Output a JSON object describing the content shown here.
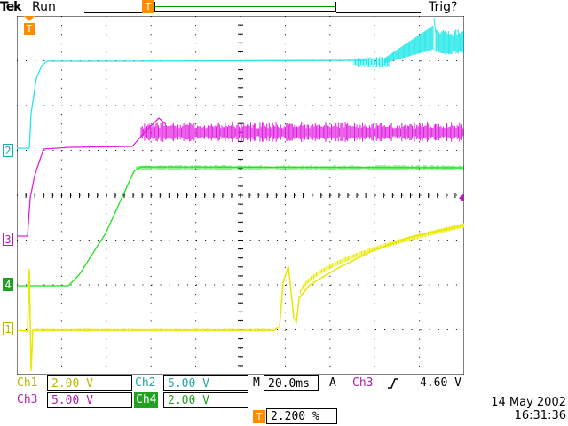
{
  "header": {
    "brand": "Tek",
    "status": "Run",
    "trigger_status": "Trig?"
  },
  "markers": {
    "trigger_pos": "T",
    "ch2": "2",
    "ch3": "3",
    "ch4": "4",
    "ch1": "1"
  },
  "colors": {
    "ch1": "#e8e800",
    "ch2": "#22e8e8",
    "ch3": "#e020e0",
    "ch4": "#22e022",
    "trigger": "#ff8c00",
    "grid": "#000000"
  },
  "channels": {
    "ch1": {
      "label": "Ch1",
      "scale": "2.00 V"
    },
    "ch2": {
      "label": "Ch2",
      "scale": "5.00 V"
    },
    "ch3": {
      "label": "Ch3",
      "scale": "5.00 V"
    },
    "ch4": {
      "label": "Ch4",
      "scale": "2.00 V"
    }
  },
  "timebase": {
    "prefix": "M",
    "value": "20.0ms"
  },
  "trigger": {
    "mode": "A",
    "source": "Ch3",
    "slope_icon": "rising-edge-icon",
    "level": "4.60 V",
    "position_marker": "T",
    "position": "2.200 %"
  },
  "datetime": {
    "date": "14 May 2002",
    "time": "16:31:36"
  }
}
